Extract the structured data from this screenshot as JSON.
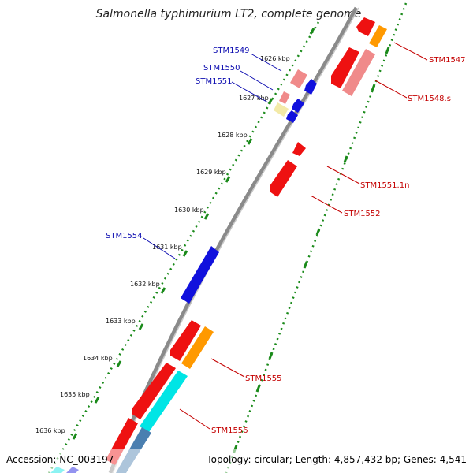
{
  "title": "Salmonella typhimurium LT2, complete genome",
  "footer": {
    "accession": "Accession: NC_003197",
    "summary": "Topology: circular; Length: 4,857,432 bp; Genes: 4,541"
  },
  "colors": {
    "backbone": "#8a8a8a",
    "tick_dots": "#1a8a1a",
    "tick_major": "#1a8a1a",
    "red_gene": "#ee1111",
    "pink_gene": "#f08a8a",
    "orange_gene": "#ff9900",
    "blue_gene": "#1111dd",
    "cyan_gene": "#00e5e5",
    "steel_gene": "#4a7fb0",
    "pale_gene": "#f3eaa8",
    "blue_label": "#0b0bb0",
    "red_label": "#c40000"
  },
  "kbp_ticks": [
    "1626 kbp",
    "1627 kbp",
    "1628 kbp",
    "1629 kbp",
    "1630 kbp",
    "1631 kbp",
    "1632 kbp",
    "1633 kbp",
    "1634 kbp",
    "1635 kbp",
    "1636 kbp"
  ],
  "gene_labels_left": [
    "STM1549",
    "STM1550",
    "STM1551",
    "STM1554"
  ],
  "gene_labels_right": [
    "STM1547",
    "STM1548.s",
    "STM1551.1n",
    "STM1552",
    "STM1555",
    "STM1556"
  ]
}
